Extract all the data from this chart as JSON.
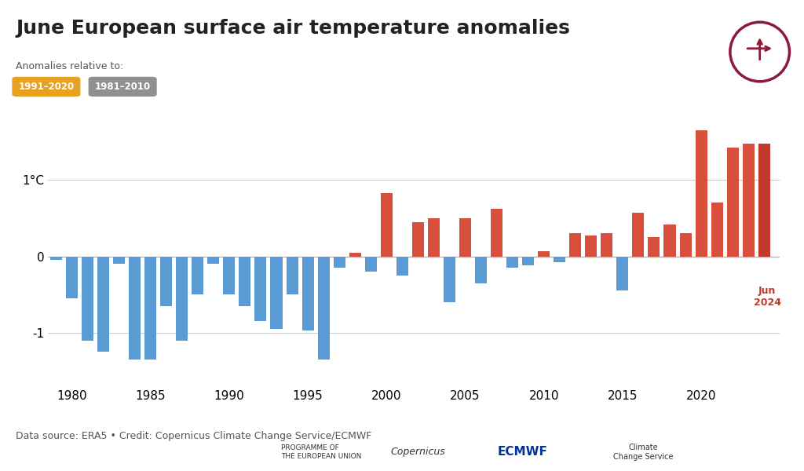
{
  "title": "June European surface air temperature anomalies",
  "subtitle": "Anomalies relative to:",
  "legend_labels": [
    "1991–2020",
    "1981–2010"
  ],
  "legend_colors": [
    "#e8a020",
    "#909090"
  ],
  "ylabel": "1°C",
  "source": "Data source: ERA5 • Credit: Copernicus Climate Change Service/ECMWF",
  "annotation": "Jun\n2024",
  "annotation_color": "#c0392b",
  "years": [
    1979,
    1980,
    1981,
    1982,
    1983,
    1984,
    1985,
    1986,
    1987,
    1988,
    1989,
    1990,
    1991,
    1992,
    1993,
    1994,
    1995,
    1996,
    1997,
    1998,
    1999,
    2000,
    2001,
    2002,
    2003,
    2004,
    2005,
    2006,
    2007,
    2008,
    2009,
    2010,
    2011,
    2012,
    2013,
    2014,
    2015,
    2016,
    2017,
    2018,
    2019,
    2020,
    2021,
    2022,
    2023,
    2024
  ],
  "values": [
    -0.05,
    -0.55,
    -1.1,
    -1.25,
    -0.1,
    -1.35,
    -1.35,
    -0.65,
    -1.1,
    -0.5,
    -0.1,
    -0.5,
    -0.65,
    -0.85,
    -0.95,
    -0.5,
    -0.97,
    -1.35,
    -0.15,
    0.05,
    -0.2,
    0.83,
    -0.25,
    0.45,
    0.5,
    -0.6,
    0.5,
    -0.35,
    0.62,
    -0.15,
    -0.12,
    0.07,
    -0.08,
    0.3,
    0.27,
    0.3,
    -0.45,
    0.57,
    0.25,
    0.42,
    0.3,
    1.65,
    0.7,
    1.42,
    1.48,
    1.48
  ],
  "bar_color_positive": "#d94f3d",
  "bar_color_negative": "#5b9bd5",
  "bar_color_last": "#c0392b",
  "ylim": [
    -1.7,
    2.0
  ],
  "yticks": [
    -1,
    0,
    1
  ],
  "background_color": "#ffffff",
  "grid_color": "#cccccc",
  "title_fontsize": 18,
  "axis_fontsize": 11,
  "source_fontsize": 9
}
